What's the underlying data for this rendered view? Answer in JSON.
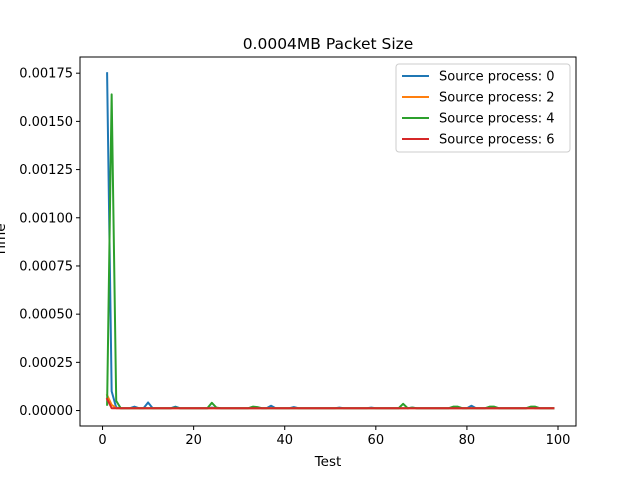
{
  "chart_data": {
    "type": "line",
    "title": "0.0004MB Packet Size",
    "xlabel": "Test",
    "ylabel": "Time",
    "xlim": [
      -4.95,
      103.95
    ],
    "ylim": [
      -8.02e-05,
      0.001834
    ],
    "xticks": [
      0,
      20,
      40,
      60,
      80,
      100
    ],
    "yticks": [
      0.0,
      0.00025,
      0.0005,
      0.00075,
      0.001,
      0.00125,
      0.0015,
      0.00175
    ],
    "xtick_labels": [
      "0",
      "20",
      "40",
      "60",
      "80",
      "100"
    ],
    "ytick_labels": [
      "0.00000",
      "0.00025",
      "0.00050",
      "0.00075",
      "0.00100",
      "0.00125",
      "0.00150",
      "0.00175"
    ],
    "grid": false,
    "legend_position": "top-right",
    "series": [
      {
        "name": "Source process: 0",
        "color": "#1f77b4",
        "x": [
          1,
          2,
          3,
          4,
          5,
          6,
          7,
          8,
          9,
          10,
          11,
          12,
          13,
          14,
          15,
          16,
          17,
          18,
          19,
          20,
          21,
          22,
          23,
          24,
          25,
          26,
          27,
          28,
          29,
          30,
          31,
          32,
          33,
          34,
          35,
          36,
          37,
          38,
          39,
          40,
          41,
          42,
          43,
          44,
          45,
          46,
          47,
          48,
          49,
          50,
          51,
          52,
          53,
          54,
          55,
          56,
          57,
          58,
          59,
          60,
          61,
          62,
          63,
          64,
          65,
          66,
          67,
          68,
          69,
          70,
          71,
          72,
          73,
          74,
          75,
          76,
          77,
          78,
          79,
          80,
          81,
          82,
          83,
          84,
          85,
          86,
          87,
          88,
          89,
          90,
          91,
          92,
          93,
          94,
          95,
          96,
          97,
          98,
          99
        ],
        "y": [
          0.00175,
          0.0001,
          1.5e-05,
          1.2e-05,
          1.2e-05,
          1.2e-05,
          2e-05,
          1.2e-05,
          1.2e-05,
          4.2e-05,
          1.2e-05,
          1.2e-05,
          1.2e-05,
          1.2e-05,
          1.2e-05,
          2e-05,
          1.2e-05,
          1.2e-05,
          1.2e-05,
          1.2e-05,
          1.2e-05,
          1.2e-05,
          1.2e-05,
          1.5e-05,
          1.2e-05,
          1.2e-05,
          1.2e-05,
          1.2e-05,
          1.2e-05,
          1.2e-05,
          1.2e-05,
          1.2e-05,
          1.2e-05,
          1.2e-05,
          1.2e-05,
          1.2e-05,
          2.5e-05,
          1.2e-05,
          1.2e-05,
          1.2e-05,
          1.2e-05,
          1.8e-05,
          1.2e-05,
          1.2e-05,
          1.2e-05,
          1.2e-05,
          1.2e-05,
          1.2e-05,
          1.2e-05,
          1.2e-05,
          1.2e-05,
          1.5e-05,
          1.2e-05,
          1.2e-05,
          1.2e-05,
          1.2e-05,
          1.2e-05,
          1.2e-05,
          1.5e-05,
          1.2e-05,
          1.2e-05,
          1.2e-05,
          1.2e-05,
          1.2e-05,
          1.2e-05,
          1.2e-05,
          1.2e-05,
          1.5e-05,
          1.2e-05,
          1.2e-05,
          1.2e-05,
          1.2e-05,
          1.2e-05,
          1.2e-05,
          1.2e-05,
          1.2e-05,
          1.2e-05,
          1.2e-05,
          1.2e-05,
          1.2e-05,
          2.5e-05,
          1.2e-05,
          1.2e-05,
          1.2e-05,
          1.2e-05,
          1.2e-05,
          1.2e-05,
          1.2e-05,
          1.2e-05,
          1.2e-05,
          1.2e-05,
          1.2e-05,
          1.2e-05,
          1.5e-05,
          1.2e-05,
          1.2e-05,
          1.2e-05,
          1.2e-05,
          1.2e-05
        ]
      },
      {
        "name": "Source process: 2",
        "color": "#ff7f0e",
        "x": [
          1,
          2,
          3,
          4,
          5,
          6,
          7,
          8,
          9,
          10,
          11,
          12,
          13,
          14,
          15,
          16,
          17,
          18,
          19,
          20,
          21,
          22,
          23,
          24,
          25,
          26,
          27,
          28,
          29,
          30,
          31,
          32,
          33,
          34,
          35,
          36,
          37,
          38,
          39,
          40,
          41,
          42,
          43,
          44,
          45,
          46,
          47,
          48,
          49,
          50,
          51,
          52,
          53,
          54,
          55,
          56,
          57,
          58,
          59,
          60,
          61,
          62,
          63,
          64,
          65,
          66,
          67,
          68,
          69,
          70,
          71,
          72,
          73,
          74,
          75,
          76,
          77,
          78,
          79,
          80,
          81,
          82,
          83,
          84,
          85,
          86,
          87,
          88,
          89,
          90,
          91,
          92,
          93,
          94,
          95,
          96,
          97,
          98,
          99
        ],
        "y": [
          8e-05,
          3e-05,
          1.2e-05,
          1.2e-05,
          1.2e-05,
          1.2e-05,
          1.2e-05,
          1.2e-05,
          1.2e-05,
          1.2e-05,
          1.2e-05,
          1.2e-05,
          1.2e-05,
          1.2e-05,
          1.2e-05,
          1.2e-05,
          1.2e-05,
          1.2e-05,
          1.2e-05,
          1.2e-05,
          1.2e-05,
          1.2e-05,
          1.2e-05,
          1.2e-05,
          1.2e-05,
          1.2e-05,
          1.2e-05,
          1.2e-05,
          1.2e-05,
          1.2e-05,
          1.2e-05,
          1.2e-05,
          1.2e-05,
          1.2e-05,
          1.2e-05,
          1.2e-05,
          1.2e-05,
          1.2e-05,
          1.2e-05,
          1.2e-05,
          1.2e-05,
          1.2e-05,
          1.2e-05,
          1.2e-05,
          1.2e-05,
          1.2e-05,
          1.2e-05,
          1.2e-05,
          1.2e-05,
          1.2e-05,
          1.2e-05,
          1.2e-05,
          1.2e-05,
          1.2e-05,
          1.2e-05,
          1.2e-05,
          1.2e-05,
          1.2e-05,
          1.2e-05,
          1.2e-05,
          1.2e-05,
          1.2e-05,
          1.2e-05,
          1.2e-05,
          1.2e-05,
          1.2e-05,
          1.2e-05,
          1.2e-05,
          1.2e-05,
          1.2e-05,
          1.2e-05,
          1.2e-05,
          1.2e-05,
          1.2e-05,
          1.2e-05,
          1.2e-05,
          1.2e-05,
          1.2e-05,
          1.2e-05,
          1.2e-05,
          1.2e-05,
          1.2e-05,
          1.2e-05,
          1.2e-05,
          1.2e-05,
          1.2e-05,
          1.2e-05,
          1.2e-05,
          1.2e-05,
          1.2e-05,
          1.2e-05,
          1.2e-05,
          1.2e-05,
          1.2e-05,
          1.2e-05,
          1.2e-05,
          1.2e-05,
          1.2e-05,
          1.2e-05
        ]
      },
      {
        "name": "Source process: 4",
        "color": "#2ca02c",
        "x": [
          1,
          2,
          3,
          4,
          5,
          6,
          7,
          8,
          9,
          10,
          11,
          12,
          13,
          14,
          15,
          16,
          17,
          18,
          19,
          20,
          21,
          22,
          23,
          24,
          25,
          26,
          27,
          28,
          29,
          30,
          31,
          32,
          33,
          34,
          35,
          36,
          37,
          38,
          39,
          40,
          41,
          42,
          43,
          44,
          45,
          46,
          47,
          48,
          49,
          50,
          51,
          52,
          53,
          54,
          55,
          56,
          57,
          58,
          59,
          60,
          61,
          62,
          63,
          64,
          65,
          66,
          67,
          68,
          69,
          70,
          71,
          72,
          73,
          74,
          75,
          76,
          77,
          78,
          79,
          80,
          81,
          82,
          83,
          84,
          85,
          86,
          87,
          88,
          89,
          90,
          91,
          92,
          93,
          94,
          95,
          96,
          97,
          98,
          99
        ],
        "y": [
          3e-05,
          0.00164,
          5e-05,
          1.2e-05,
          1.2e-05,
          1.2e-05,
          1.2e-05,
          1.2e-05,
          1.2e-05,
          1.2e-05,
          1.2e-05,
          1.2e-05,
          1.2e-05,
          1.2e-05,
          1.2e-05,
          1.5e-05,
          1.2e-05,
          1.2e-05,
          1.2e-05,
          1.2e-05,
          1.2e-05,
          1.2e-05,
          1.2e-05,
          4e-05,
          1.5e-05,
          1.2e-05,
          1.2e-05,
          1.2e-05,
          1.2e-05,
          1.2e-05,
          1.2e-05,
          1.2e-05,
          2e-05,
          1.8e-05,
          1.2e-05,
          1.2e-05,
          1.2e-05,
          1.2e-05,
          1.2e-05,
          1.2e-05,
          1.2e-05,
          1.2e-05,
          1.2e-05,
          1.2e-05,
          1.2e-05,
          1.2e-05,
          1.2e-05,
          1.2e-05,
          1.2e-05,
          1.2e-05,
          1.2e-05,
          1.2e-05,
          1.2e-05,
          1.2e-05,
          1.2e-05,
          1.2e-05,
          1.2e-05,
          1.2e-05,
          1.2e-05,
          1.2e-05,
          1.2e-05,
          1.2e-05,
          1.2e-05,
          1.2e-05,
          1.2e-05,
          3.5e-05,
          1.2e-05,
          1.5e-05,
          1.2e-05,
          1.2e-05,
          1.2e-05,
          1.2e-05,
          1.2e-05,
          1.2e-05,
          1.2e-05,
          1.2e-05,
          2e-05,
          2e-05,
          1.2e-05,
          1.2e-05,
          1.2e-05,
          1.2e-05,
          1.2e-05,
          1.2e-05,
          2e-05,
          2e-05,
          1.2e-05,
          1.2e-05,
          1.2e-05,
          1.2e-05,
          1.2e-05,
          1.2e-05,
          1.2e-05,
          2e-05,
          2e-05,
          1.2e-05,
          1.2e-05,
          1.2e-05,
          1.2e-05
        ]
      },
      {
        "name": "Source process: 6",
        "color": "#d62728",
        "x": [
          1,
          2,
          3,
          4,
          5,
          6,
          7,
          8,
          9,
          10,
          11,
          12,
          13,
          14,
          15,
          16,
          17,
          18,
          19,
          20,
          21,
          22,
          23,
          24,
          25,
          26,
          27,
          28,
          29,
          30,
          31,
          32,
          33,
          34,
          35,
          36,
          37,
          38,
          39,
          40,
          41,
          42,
          43,
          44,
          45,
          46,
          47,
          48,
          49,
          50,
          51,
          52,
          53,
          54,
          55,
          56,
          57,
          58,
          59,
          60,
          61,
          62,
          63,
          64,
          65,
          66,
          67,
          68,
          69,
          70,
          71,
          72,
          73,
          74,
          75,
          76,
          77,
          78,
          79,
          80,
          81,
          82,
          83,
          84,
          85,
          86,
          87,
          88,
          89,
          90,
          91,
          92,
          93,
          94,
          95,
          96,
          97,
          98,
          99
        ],
        "y": [
          6e-05,
          1.2e-05,
          1.2e-05,
          1.2e-05,
          1.2e-05,
          1.2e-05,
          1.2e-05,
          1.2e-05,
          1.2e-05,
          1.2e-05,
          1.2e-05,
          1.2e-05,
          1.2e-05,
          1.2e-05,
          1.2e-05,
          1.2e-05,
          1.2e-05,
          1.2e-05,
          1.2e-05,
          1.2e-05,
          1.2e-05,
          1.2e-05,
          1.2e-05,
          1.2e-05,
          1.2e-05,
          1.2e-05,
          1.2e-05,
          1.2e-05,
          1.2e-05,
          1.2e-05,
          1.2e-05,
          1.2e-05,
          1.2e-05,
          1.2e-05,
          1.2e-05,
          1.2e-05,
          1.2e-05,
          1.2e-05,
          1.2e-05,
          1.2e-05,
          1.2e-05,
          1.2e-05,
          1.2e-05,
          1.2e-05,
          1.2e-05,
          1.2e-05,
          1.2e-05,
          1.2e-05,
          1.2e-05,
          1.2e-05,
          1.2e-05,
          1.2e-05,
          1.2e-05,
          1.2e-05,
          1.2e-05,
          1.2e-05,
          1.2e-05,
          1.2e-05,
          1.2e-05,
          1.2e-05,
          1.2e-05,
          1.2e-05,
          1.2e-05,
          1.2e-05,
          1.2e-05,
          1.2e-05,
          1.2e-05,
          1.2e-05,
          1.2e-05,
          1.2e-05,
          1.2e-05,
          1.2e-05,
          1.2e-05,
          1.2e-05,
          1.2e-05,
          1.2e-05,
          1.2e-05,
          1.2e-05,
          1.2e-05,
          1.2e-05,
          1.2e-05,
          1.2e-05,
          1.2e-05,
          1.2e-05,
          1.2e-05,
          1.2e-05,
          1.2e-05,
          1.2e-05,
          1.2e-05,
          1.2e-05,
          1.2e-05,
          1.2e-05,
          1.2e-05,
          1.2e-05,
          1.2e-05,
          1.2e-05,
          1.2e-05,
          1.2e-05,
          1.2e-05
        ]
      }
    ]
  }
}
